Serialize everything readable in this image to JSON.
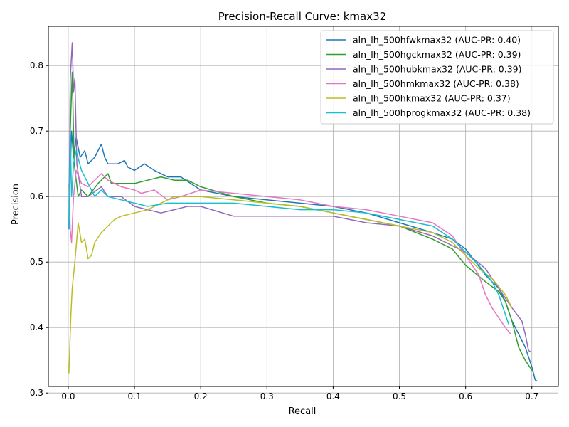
{
  "chart_data": {
    "type": "line",
    "title": "Precision-Recall Curve: kmax32",
    "xlabel": "Recall",
    "ylabel": "Precision",
    "xlim": [
      -0.03,
      0.74
    ],
    "ylim": [
      0.31,
      0.86
    ],
    "xticks": [
      0.0,
      0.1,
      0.2,
      0.3,
      0.4,
      0.5,
      0.6,
      0.7
    ],
    "yticks": [
      0.3,
      0.4,
      0.5,
      0.6,
      0.7,
      0.8
    ],
    "grid": true,
    "legend_position": "upper right",
    "series": [
      {
        "name": "aln_lh_500hfwkmax32 (AUC-PR: 0.40)",
        "color": "#1f77b4",
        "points": [
          [
            0.001,
            0.55
          ],
          [
            0.003,
            0.64
          ],
          [
            0.005,
            0.7
          ],
          [
            0.008,
            0.66
          ],
          [
            0.012,
            0.69
          ],
          [
            0.018,
            0.66
          ],
          [
            0.025,
            0.67
          ],
          [
            0.03,
            0.65
          ],
          [
            0.04,
            0.66
          ],
          [
            0.05,
            0.68
          ],
          [
            0.055,
            0.66
          ],
          [
            0.06,
            0.65
          ],
          [
            0.075,
            0.65
          ],
          [
            0.085,
            0.655
          ],
          [
            0.09,
            0.645
          ],
          [
            0.1,
            0.64
          ],
          [
            0.115,
            0.65
          ],
          [
            0.13,
            0.64
          ],
          [
            0.15,
            0.63
          ],
          [
            0.17,
            0.63
          ],
          [
            0.2,
            0.61
          ],
          [
            0.25,
            0.6
          ],
          [
            0.3,
            0.595
          ],
          [
            0.35,
            0.59
          ],
          [
            0.4,
            0.585
          ],
          [
            0.45,
            0.575
          ],
          [
            0.5,
            0.56
          ],
          [
            0.55,
            0.545
          ],
          [
            0.58,
            0.535
          ],
          [
            0.6,
            0.52
          ],
          [
            0.63,
            0.48
          ],
          [
            0.65,
            0.46
          ],
          [
            0.66,
            0.44
          ],
          [
            0.67,
            0.41
          ],
          [
            0.68,
            0.39
          ],
          [
            0.69,
            0.37
          ],
          [
            0.7,
            0.34
          ],
          [
            0.705,
            0.32
          ],
          [
            0.708,
            0.318
          ]
        ]
      },
      {
        "name": "aln_lh_500hgckmax32 (AUC-PR: 0.39)",
        "color": "#2ca02c",
        "points": [
          [
            0.001,
            0.55
          ],
          [
            0.003,
            0.7
          ],
          [
            0.006,
            0.79
          ],
          [
            0.009,
            0.65
          ],
          [
            0.015,
            0.6
          ],
          [
            0.02,
            0.61
          ],
          [
            0.03,
            0.6
          ],
          [
            0.045,
            0.62
          ],
          [
            0.06,
            0.635
          ],
          [
            0.065,
            0.62
          ],
          [
            0.08,
            0.62
          ],
          [
            0.1,
            0.62
          ],
          [
            0.12,
            0.625
          ],
          [
            0.14,
            0.63
          ],
          [
            0.16,
            0.625
          ],
          [
            0.18,
            0.625
          ],
          [
            0.2,
            0.615
          ],
          [
            0.25,
            0.6
          ],
          [
            0.3,
            0.59
          ],
          [
            0.35,
            0.585
          ],
          [
            0.4,
            0.575
          ],
          [
            0.45,
            0.565
          ],
          [
            0.5,
            0.555
          ],
          [
            0.55,
            0.535
          ],
          [
            0.58,
            0.52
          ],
          [
            0.6,
            0.495
          ],
          [
            0.63,
            0.47
          ],
          [
            0.65,
            0.455
          ],
          [
            0.66,
            0.44
          ],
          [
            0.67,
            0.41
          ],
          [
            0.68,
            0.37
          ],
          [
            0.69,
            0.35
          ],
          [
            0.7,
            0.335
          ],
          [
            0.702,
            0.332
          ]
        ]
      },
      {
        "name": "aln_lh_500hubkmax32 (AUC-PR: 0.39)",
        "color": "#9467bd",
        "points": [
          [
            0.001,
            0.55
          ],
          [
            0.003,
            0.78
          ],
          [
            0.006,
            0.835
          ],
          [
            0.008,
            0.76
          ],
          [
            0.01,
            0.78
          ],
          [
            0.013,
            0.65
          ],
          [
            0.02,
            0.6
          ],
          [
            0.03,
            0.6
          ],
          [
            0.05,
            0.615
          ],
          [
            0.06,
            0.6
          ],
          [
            0.08,
            0.6
          ],
          [
            0.1,
            0.585
          ],
          [
            0.12,
            0.58
          ],
          [
            0.14,
            0.575
          ],
          [
            0.16,
            0.58
          ],
          [
            0.18,
            0.585
          ],
          [
            0.2,
            0.585
          ],
          [
            0.25,
            0.57
          ],
          [
            0.3,
            0.57
          ],
          [
            0.35,
            0.57
          ],
          [
            0.4,
            0.57
          ],
          [
            0.45,
            0.56
          ],
          [
            0.5,
            0.555
          ],
          [
            0.55,
            0.54
          ],
          [
            0.6,
            0.515
          ],
          [
            0.63,
            0.49
          ],
          [
            0.65,
            0.46
          ],
          [
            0.67,
            0.43
          ],
          [
            0.685,
            0.41
          ],
          [
            0.69,
            0.39
          ],
          [
            0.695,
            0.365
          ],
          [
            0.698,
            0.363
          ]
        ]
      },
      {
        "name": "aln_lh_500hmkmax32 (AUC-PR: 0.38)",
        "color": "#e377c2",
        "points": [
          [
            0.001,
            0.62
          ],
          [
            0.003,
            0.55
          ],
          [
            0.005,
            0.53
          ],
          [
            0.008,
            0.6
          ],
          [
            0.012,
            0.64
          ],
          [
            0.02,
            0.62
          ],
          [
            0.03,
            0.615
          ],
          [
            0.05,
            0.635
          ],
          [
            0.06,
            0.625
          ],
          [
            0.08,
            0.615
          ],
          [
            0.1,
            0.61
          ],
          [
            0.11,
            0.605
          ],
          [
            0.13,
            0.61
          ],
          [
            0.15,
            0.595
          ],
          [
            0.17,
            0.6
          ],
          [
            0.2,
            0.61
          ],
          [
            0.25,
            0.605
          ],
          [
            0.3,
            0.6
          ],
          [
            0.35,
            0.595
          ],
          [
            0.4,
            0.585
          ],
          [
            0.45,
            0.58
          ],
          [
            0.5,
            0.57
          ],
          [
            0.55,
            0.56
          ],
          [
            0.58,
            0.54
          ],
          [
            0.6,
            0.51
          ],
          [
            0.62,
            0.48
          ],
          [
            0.63,
            0.45
          ],
          [
            0.64,
            0.43
          ],
          [
            0.65,
            0.415
          ],
          [
            0.66,
            0.4
          ],
          [
            0.668,
            0.39
          ]
        ]
      },
      {
        "name": "aln_lh_500hkmax32 (AUC-PR: 0.37)",
        "color": "#bcbd22",
        "points": [
          [
            0.001,
            0.33
          ],
          [
            0.002,
            0.36
          ],
          [
            0.004,
            0.42
          ],
          [
            0.006,
            0.46
          ],
          [
            0.01,
            0.5
          ],
          [
            0.015,
            0.56
          ],
          [
            0.02,
            0.53
          ],
          [
            0.025,
            0.535
          ],
          [
            0.03,
            0.505
          ],
          [
            0.035,
            0.51
          ],
          [
            0.04,
            0.53
          ],
          [
            0.05,
            0.545
          ],
          [
            0.06,
            0.555
          ],
          [
            0.07,
            0.565
          ],
          [
            0.08,
            0.57
          ],
          [
            0.1,
            0.575
          ],
          [
            0.12,
            0.58
          ],
          [
            0.14,
            0.59
          ],
          [
            0.16,
            0.6
          ],
          [
            0.18,
            0.6
          ],
          [
            0.2,
            0.6
          ],
          [
            0.25,
            0.595
          ],
          [
            0.3,
            0.59
          ],
          [
            0.35,
            0.585
          ],
          [
            0.4,
            0.575
          ],
          [
            0.45,
            0.565
          ],
          [
            0.5,
            0.555
          ],
          [
            0.55,
            0.545
          ],
          [
            0.58,
            0.53
          ],
          [
            0.6,
            0.51
          ],
          [
            0.62,
            0.49
          ],
          [
            0.64,
            0.475
          ],
          [
            0.66,
            0.45
          ],
          [
            0.67,
            0.43
          ]
        ]
      },
      {
        "name": "aln_lh_500hprogkmax32 (AUC-PR: 0.38)",
        "color": "#17becf",
        "points": [
          [
            0.001,
            0.55
          ],
          [
            0.003,
            0.7
          ],
          [
            0.005,
            0.6
          ],
          [
            0.008,
            0.65
          ],
          [
            0.012,
            0.67
          ],
          [
            0.02,
            0.64
          ],
          [
            0.03,
            0.62
          ],
          [
            0.04,
            0.6
          ],
          [
            0.05,
            0.61
          ],
          [
            0.06,
            0.6
          ],
          [
            0.08,
            0.595
          ],
          [
            0.1,
            0.59
          ],
          [
            0.12,
            0.585
          ],
          [
            0.15,
            0.59
          ],
          [
            0.2,
            0.59
          ],
          [
            0.25,
            0.59
          ],
          [
            0.3,
            0.585
          ],
          [
            0.35,
            0.58
          ],
          [
            0.4,
            0.58
          ],
          [
            0.45,
            0.575
          ],
          [
            0.5,
            0.565
          ],
          [
            0.55,
            0.555
          ],
          [
            0.58,
            0.535
          ],
          [
            0.6,
            0.515
          ],
          [
            0.62,
            0.495
          ],
          [
            0.64,
            0.47
          ],
          [
            0.65,
            0.45
          ],
          [
            0.66,
            0.42
          ],
          [
            0.665,
            0.405
          ]
        ]
      }
    ]
  }
}
